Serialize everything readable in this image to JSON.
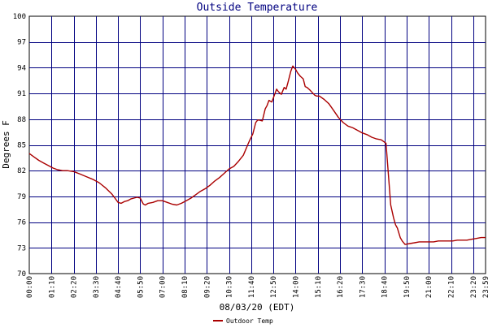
{
  "chart_data": {
    "type": "line",
    "title": "Outside Temperature",
    "xlabel": "08/03/20 (EDT)",
    "ylabel": "Degrees F",
    "ylim": [
      70,
      100
    ],
    "yticks": [
      70,
      73,
      76,
      79,
      82,
      85,
      88,
      91,
      94,
      97,
      100
    ],
    "xticks": [
      "00:00",
      "01:10",
      "02:20",
      "03:30",
      "04:40",
      "05:50",
      "07:00",
      "08:10",
      "09:20",
      "10:30",
      "11:40",
      "12:50",
      "14:00",
      "15:10",
      "16:20",
      "17:30",
      "18:40",
      "19:50",
      "21:00",
      "22:10",
      "23:20",
      "23:59"
    ],
    "xlim_hours": [
      0,
      23.983
    ],
    "grid": true,
    "legend_position": "bottom-left",
    "colors": {
      "series": "#aa0000",
      "grid": "#000080",
      "title": "#000080"
    },
    "series": [
      {
        "name": "Outdoor Temp",
        "x": [
          0.0,
          0.25,
          0.5,
          0.75,
          1.0,
          1.25,
          1.5,
          1.75,
          2.0,
          2.33,
          2.67,
          3.0,
          3.33,
          3.67,
          4.0,
          4.33,
          4.5,
          4.67,
          4.83,
          5.0,
          5.17,
          5.33,
          5.5,
          5.67,
          5.83,
          6.0,
          6.1,
          6.25,
          6.5,
          6.75,
          7.0,
          7.25,
          7.5,
          7.75,
          8.0,
          8.25,
          8.5,
          8.75,
          9.0,
          9.25,
          9.5,
          9.75,
          10.0,
          10.25,
          10.5,
          10.75,
          11.0,
          11.25,
          11.5,
          11.6,
          11.75,
          11.9,
          12.0,
          12.1,
          12.25,
          12.4,
          12.5,
          12.6,
          12.75,
          12.85,
          13.0,
          13.1,
          13.25,
          13.4,
          13.5,
          13.6,
          13.75,
          13.85,
          14.0,
          14.1,
          14.25,
          14.4,
          14.5,
          14.6,
          14.75,
          15.0,
          15.1,
          15.25,
          15.5,
          15.75,
          16.0,
          16.25,
          16.5,
          16.75,
          17.0,
          17.25,
          17.5,
          17.75,
          18.0,
          18.25,
          18.5,
          18.75,
          19.0,
          19.15,
          19.25,
          19.35,
          19.5,
          19.6,
          19.75,
          20.0,
          20.25,
          20.5,
          20.75,
          21.0,
          21.25,
          21.5,
          21.75,
          22.0,
          22.25,
          22.5,
          22.75,
          23.0,
          23.25,
          23.5,
          23.75,
          23.98
        ],
        "y": [
          84.0,
          83.6,
          83.2,
          82.9,
          82.6,
          82.3,
          82.1,
          82.0,
          82.0,
          81.9,
          81.6,
          81.3,
          81.0,
          80.6,
          80.0,
          79.3,
          78.8,
          78.3,
          78.2,
          78.4,
          78.5,
          78.7,
          78.8,
          78.9,
          78.8,
          78.1,
          78.0,
          78.2,
          78.3,
          78.5,
          78.5,
          78.3,
          78.1,
          78.0,
          78.2,
          78.5,
          78.8,
          79.2,
          79.6,
          79.9,
          80.3,
          80.8,
          81.2,
          81.7,
          82.2,
          82.5,
          83.1,
          83.8,
          85.1,
          85.6,
          86.3,
          87.6,
          87.9,
          87.9,
          87.8,
          89.2,
          89.6,
          90.2,
          90.0,
          90.6,
          91.5,
          91.2,
          90.9,
          91.7,
          91.5,
          92.3,
          93.6,
          94.2,
          93.8,
          93.4,
          93.0,
          92.7,
          91.8,
          91.7,
          91.4,
          90.8,
          90.7,
          90.7,
          90.3,
          89.8,
          89.0,
          88.2,
          87.6,
          87.2,
          87.0,
          86.7,
          86.4,
          86.2,
          85.9,
          85.7,
          85.6,
          85.2,
          78.0,
          76.5,
          75.7,
          75.3,
          74.2,
          73.8,
          73.4,
          73.5,
          73.6,
          73.7,
          73.7,
          73.7,
          73.7,
          73.8,
          73.8,
          73.8,
          73.8,
          73.9,
          73.9,
          73.9,
          74.0,
          74.1,
          74.2,
          74.2
        ]
      }
    ]
  }
}
